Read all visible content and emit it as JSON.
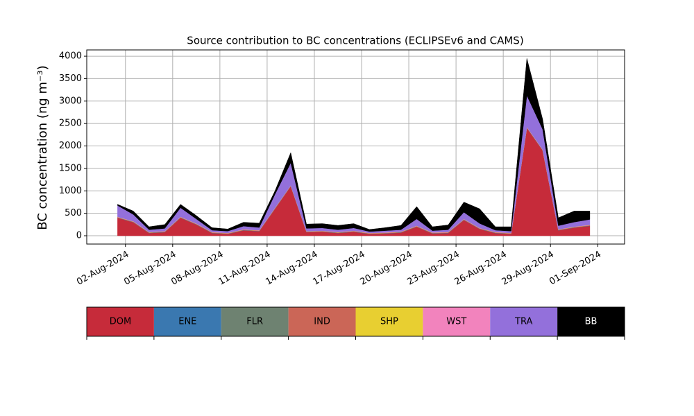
{
  "chart_data": {
    "type": "stacked_area",
    "title": "Source contribution to BC concentrations (ECLIPSEv6 and CAMS)",
    "y_label": "BC concentration (ng m⁻³)",
    "x": [
      "2024-08-01T12:00",
      "2024-08-02T12:00",
      "2024-08-03T12:00",
      "2024-08-04T12:00",
      "2024-08-05T12:00",
      "2024-08-06T12:00",
      "2024-08-07T12:00",
      "2024-08-08T12:00",
      "2024-08-09T12:00",
      "2024-08-10T12:00",
      "2024-08-11T12:00",
      "2024-08-12T12:00",
      "2024-08-13T12:00",
      "2024-08-14T12:00",
      "2024-08-15T12:00",
      "2024-08-16T12:00",
      "2024-08-17T12:00",
      "2024-08-18T12:00",
      "2024-08-19T12:00",
      "2024-08-20T12:00",
      "2024-08-21T12:00",
      "2024-08-22T12:00",
      "2024-08-23T12:00",
      "2024-08-24T12:00",
      "2024-08-25T12:00",
      "2024-08-26T12:00",
      "2024-08-27T12:00",
      "2024-08-28T12:00",
      "2024-08-29T12:00",
      "2024-08-30T12:00",
      "2024-08-31T12:00"
    ],
    "series": [
      {
        "name": "DOM",
        "color": "#c62b3a",
        "values": [
          400,
          300,
          60,
          80,
          400,
          250,
          60,
          40,
          120,
          100,
          600,
          1100,
          80,
          90,
          60,
          90,
          40,
          50,
          70,
          200,
          50,
          60,
          350,
          150,
          60,
          40,
          2400,
          1900,
          120,
          180,
          220
        ]
      },
      {
        "name": "ENE",
        "color": "#3a78b0",
        "values": [
          5,
          5,
          5,
          5,
          5,
          5,
          5,
          5,
          5,
          5,
          5,
          5,
          5,
          5,
          5,
          5,
          5,
          5,
          5,
          5,
          5,
          5,
          5,
          5,
          5,
          5,
          5,
          5,
          5,
          5,
          5
        ]
      },
      {
        "name": "FLR",
        "color": "#6e8271",
        "values": [
          2,
          2,
          2,
          2,
          2,
          2,
          2,
          2,
          2,
          2,
          2,
          2,
          2,
          2,
          2,
          2,
          2,
          2,
          2,
          2,
          2,
          2,
          2,
          2,
          2,
          2,
          2,
          2,
          2,
          2,
          2
        ]
      },
      {
        "name": "IND",
        "color": "#cb6657",
        "values": [
          8,
          8,
          8,
          8,
          8,
          8,
          8,
          8,
          8,
          8,
          8,
          8,
          8,
          8,
          8,
          8,
          8,
          8,
          8,
          8,
          8,
          8,
          8,
          8,
          8,
          8,
          8,
          8,
          8,
          8,
          8
        ]
      },
      {
        "name": "SHP",
        "color": "#e8cf31",
        "values": [
          3,
          3,
          3,
          3,
          3,
          3,
          3,
          3,
          3,
          3,
          3,
          3,
          3,
          3,
          3,
          3,
          3,
          3,
          3,
          3,
          3,
          3,
          3,
          3,
          3,
          3,
          3,
          3,
          3,
          3,
          3
        ]
      },
      {
        "name": "WST",
        "color": "#f283bd",
        "values": [
          6,
          6,
          6,
          6,
          6,
          6,
          6,
          6,
          6,
          6,
          6,
          6,
          6,
          6,
          6,
          6,
          6,
          6,
          6,
          6,
          6,
          6,
          6,
          6,
          6,
          6,
          6,
          6,
          6,
          6,
          6
        ]
      },
      {
        "name": "TRA",
        "color": "#9370db",
        "values": [
          250,
          150,
          50,
          60,
          200,
          100,
          40,
          40,
          70,
          60,
          300,
          500,
          60,
          60,
          50,
          60,
          30,
          40,
          40,
          150,
          40,
          50,
          150,
          100,
          40,
          40,
          700,
          450,
          80,
          100,
          120
        ]
      },
      {
        "name": "BB",
        "color": "#000000",
        "values": [
          26,
          76,
          66,
          86,
          76,
          76,
          56,
          46,
          86,
          96,
          76,
          226,
          96,
          96,
          96,
          96,
          46,
          66,
          96,
          276,
          86,
          106,
          226,
          326,
          76,
          96,
          826,
          226,
          176,
          246,
          186
        ]
      }
    ],
    "xlim": [
      "2024-07-30T13:00",
      "2024-09-02T17:00"
    ],
    "xticks": [
      {
        "value": "2024-08-02T00:00",
        "label": "02-Aug-2024"
      },
      {
        "value": "2024-08-05T00:00",
        "label": "05-Aug-2024"
      },
      {
        "value": "2024-08-08T00:00",
        "label": "08-Aug-2024"
      },
      {
        "value": "2024-08-11T00:00",
        "label": "11-Aug-2024"
      },
      {
        "value": "2024-08-14T00:00",
        "label": "14-Aug-2024"
      },
      {
        "value": "2024-08-17T00:00",
        "label": "17-Aug-2024"
      },
      {
        "value": "2024-08-20T00:00",
        "label": "20-Aug-2024"
      },
      {
        "value": "2024-08-23T00:00",
        "label": "23-Aug-2024"
      },
      {
        "value": "2024-08-26T00:00",
        "label": "26-Aug-2024"
      },
      {
        "value": "2024-08-29T00:00",
        "label": "29-Aug-2024"
      },
      {
        "value": "2024-09-01T00:00",
        "label": "01-Sep-2024"
      }
    ],
    "ylim": [
      -185,
      4140
    ],
    "yticks": [
      0,
      500,
      1000,
      1500,
      2000,
      2500,
      3000,
      3500,
      4000
    ],
    "grid": true
  }
}
